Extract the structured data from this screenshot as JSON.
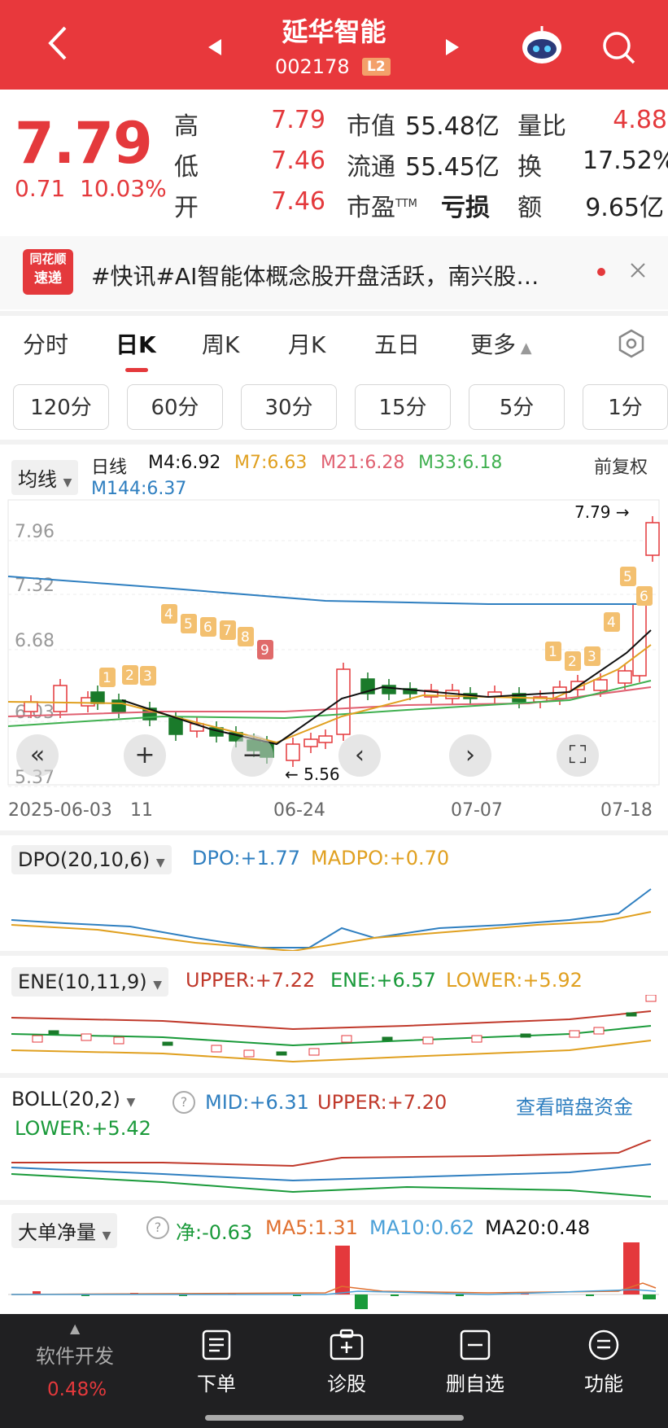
{
  "header": {
    "title": "延华智能",
    "code": "002178",
    "level_badge": "L2"
  },
  "quote": {
    "price": "7.79",
    "change": "0.71",
    "change_pct": "10.03%",
    "rows": [
      {
        "label": "高",
        "value": "7.79",
        "label2": "市值",
        "value2": "55.48亿",
        "label3": "量比",
        "value3": "4.88"
      },
      {
        "label": "低",
        "value": "7.46",
        "label2": "流通",
        "value2": "55.45亿",
        "label3": "换",
        "value3": "17.52%"
      },
      {
        "label": "开",
        "value": "7.46",
        "label2": "市盈",
        "label2_sup": "TTM",
        "value2": "亏损",
        "label3": "额",
        "value3": "9.65亿"
      }
    ]
  },
  "news": {
    "logo_line1": "同花顺",
    "logo_line2": "速递",
    "text": "#快讯#AI智能体概念股开盘活跃，南兴股…"
  },
  "tabs": [
    "分时",
    "日K",
    "周K",
    "月K",
    "五日",
    "更多"
  ],
  "active_tab": "日K",
  "periods": [
    "120分",
    "60分",
    "30分",
    "15分",
    "5分",
    "1分"
  ],
  "kline": {
    "selector": "均线",
    "type_label": "日线",
    "ma": [
      {
        "label": "M4:6.92",
        "color": "#111111"
      },
      {
        "label": "M7:6.63",
        "color": "#e0a020"
      },
      {
        "label": "M21:6.28",
        "color": "#e06070"
      },
      {
        "label": "M33:6.18",
        "color": "#40b050"
      },
      {
        "label": "M144:6.37",
        "color": "#2f7fc0"
      }
    ],
    "adjust": "前复权",
    "y_ticks": [
      "7.96",
      "7.32",
      "6.68",
      "6.03",
      "5.37"
    ],
    "x_ticks": [
      "2025-06-03",
      "11",
      "06-24",
      "07-07",
      "07-18"
    ],
    "high_label": "7.79",
    "low_label": "5.56",
    "markers_down": [
      "1",
      "2",
      "3",
      "4",
      "5",
      "6",
      "7",
      "8",
      "9"
    ],
    "markers_up": [
      "1",
      "2",
      "3",
      "4",
      "5",
      "6"
    ]
  },
  "indicators": {
    "dpo": {
      "name": "DPO(20,10,6)",
      "v1": "DPO:+1.77",
      "v2": "MADPO:+0.70"
    },
    "ene": {
      "name": "ENE(10,11,9)",
      "v1": "UPPER:+7.22",
      "v2": "ENE:+6.57",
      "v3": "LOWER:+5.92"
    },
    "boll": {
      "name": "BOLL(20,2)",
      "v1": "MID:+6.31",
      "v2": "UPPER:+7.20",
      "v3": "LOWER:+5.42",
      "link": "查看暗盘资金"
    },
    "big": {
      "name": "大单净量",
      "v1": "净:-0.63",
      "v2": "MA5:1.31",
      "v3": "MA10:0.62",
      "v4": "MA20:0.48"
    }
  },
  "bottom_nav": {
    "sector": "软件开发",
    "sector_pct": "0.48%",
    "items": [
      "下单",
      "诊股",
      "删自选",
      "功能"
    ]
  },
  "colors": {
    "brand_red": "#e8383c",
    "up": "#e4393c",
    "down": "#1a7a2a"
  }
}
